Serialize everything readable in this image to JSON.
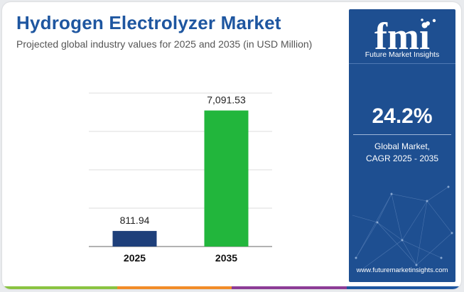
{
  "title": "Hydrogen Electrolyzer Market",
  "subtitle": "Projected global industry values for 2025 and 2035 (in USD Million)",
  "chart_data": {
    "type": "bar",
    "categories": [
      "2025",
      "2035"
    ],
    "values": [
      811.94,
      7091.53
    ],
    "value_labels": [
      "811.94",
      "7,091.53"
    ],
    "bar_colors": [
      "#1e3f7a",
      "#22b63c"
    ],
    "ylim": [
      0,
      8000
    ],
    "grid": true,
    "axis_labels_visible": false
  },
  "sidebar": {
    "logo_text": "fmi",
    "brand_name": "Future Market Insights",
    "cagr_value": "24.2%",
    "caption_line1": "Global Market,",
    "caption_line2": "CAGR 2025 - 2035",
    "website": "www.futuremarketinsights.com"
  },
  "colors": {
    "title": "#1e56a0",
    "panel": "#1e4f91",
    "bottom_strip": [
      "#8ac341",
      "#f28c28",
      "#8d3c96",
      "#1e56a0"
    ]
  }
}
